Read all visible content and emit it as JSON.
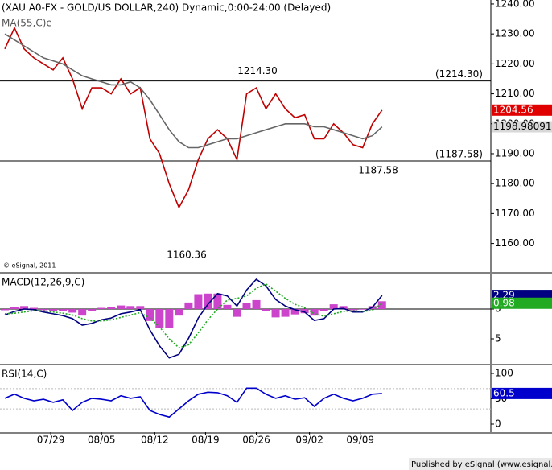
{
  "chart_data": [
    {
      "type": "line",
      "title": "(XAU A0-FX - GOLD/US DOLLAR,240) Dynamic,0:00-24:00 (Delayed)",
      "note": "© eSignal, 2011",
      "x": [
        1,
        3,
        5,
        7,
        9,
        11,
        13,
        15,
        17,
        19,
        21,
        23,
        25,
        27,
        29,
        31,
        33,
        35,
        37,
        39,
        41,
        43,
        45,
        47,
        49,
        51,
        53,
        55,
        57,
        59,
        61,
        63,
        65,
        67,
        69,
        71,
        73,
        75,
        77,
        79
      ],
      "xlim": [
        0,
        101.5
      ],
      "ylim": [
        1241.33,
        1150.48
      ],
      "yticks": [
        {
          "value": 1240,
          "label": "1240.00"
        },
        {
          "value": 1230,
          "label": "1230.00"
        },
        {
          "value": 1220,
          "label": "1220.00"
        },
        {
          "value": 1210,
          "label": "1210.00"
        },
        {
          "value": 1200,
          "label": "1200.00"
        },
        {
          "value": 1190,
          "label": "1190.00"
        },
        {
          "value": 1180,
          "label": "1180.00"
        },
        {
          "value": 1170,
          "label": "1170.00"
        },
        {
          "value": 1160,
          "label": "1160.00"
        }
      ],
      "series": [
        {
          "color": "#c00000",
          "box_color": "#e00000",
          "values": [
            1225,
            1232,
            1225,
            1222,
            1220,
            1218,
            1222,
            1215,
            1205,
            1212,
            1212,
            1210,
            1215,
            1210,
            1212,
            1195,
            1190,
            1180,
            1172,
            1178,
            1188,
            1195,
            1198,
            1195,
            1188,
            1210,
            1212,
            1205,
            1210,
            1205,
            1202,
            1203,
            1195,
            1195,
            1200,
            1197,
            1193,
            1192,
            1200,
            1204.56
          ]
        },
        {
          "name": "MA(55,C)e",
          "color": "#666666",
          "box_color": "#d8d8d8",
          "values": [
            1230,
            1228,
            1226,
            1224,
            1222,
            1221,
            1220,
            1218,
            1216,
            1215,
            1214,
            1213,
            1213,
            1214,
            1212,
            1208,
            1203,
            1198,
            1194,
            1192,
            1192,
            1193,
            1194,
            1195,
            1195,
            1196,
            1197,
            1198,
            1199,
            1200,
            1200,
            1200,
            1199,
            1199,
            1198,
            1197,
            1196,
            1195,
            1196,
            1198.98091
          ]
        }
      ],
      "levels": [
        {
          "value": 1214.3,
          "label": "(1214.30)"
        },
        {
          "value": 1187.58,
          "label": "(1187.58)"
        }
      ],
      "annotations": [
        {
          "value": 1214.3,
          "label": "1214.30"
        },
        {
          "value": 1187.58,
          "label": "1187.58"
        },
        {
          "value": 1160.36,
          "label": "1160.36"
        }
      ]
    },
    {
      "type": "line",
      "title": "MACD(12,26,9,C)",
      "x": [
        1,
        3,
        5,
        7,
        9,
        11,
        13,
        15,
        17,
        19,
        21,
        23,
        25,
        27,
        29,
        31,
        33,
        35,
        37,
        39,
        41,
        43,
        45,
        47,
        49,
        51,
        53,
        55,
        57,
        59,
        61,
        63,
        65,
        67,
        69,
        71,
        73,
        75,
        77,
        79
      ],
      "xlim": [
        0,
        101.5
      ],
      "ylim": [
        5.95,
        -9.19
      ],
      "yticks": [
        0,
        {
          "value": -5,
          "label": "5"
        }
      ],
      "series": [
        {
          "type": "bar",
          "color": "#cc44cc",
          "values": [
            -0.2,
            0.3,
            0.5,
            0.2,
            -0.2,
            -0.3,
            -0.4,
            -0.6,
            -1.1,
            -0.4,
            0.2,
            0.3,
            0.6,
            0.5,
            0.5,
            -2,
            -3.2,
            -3.2,
            -1.1,
            1.1,
            2.5,
            2.6,
            2.6,
            0.7,
            -1.3,
            1,
            1.5,
            -0.3,
            -1.4,
            -1.3,
            -0.9,
            -0.7,
            -1.1,
            -0.4,
            0.8,
            0.5,
            -0.2,
            -0.1,
            0.5,
            1.31
          ]
        },
        {
          "color": "#000080",
          "box_color": "#000080",
          "values": [
            -1,
            -0.4,
            0,
            -0.1,
            -0.5,
            -0.8,
            -1.1,
            -1.6,
            -2.7,
            -2.4,
            -1.8,
            -1.5,
            -0.8,
            -0.5,
            -0.1,
            -3.5,
            -6.2,
            -8.2,
            -7.6,
            -4.9,
            -1.5,
            0.8,
            2.6,
            2.2,
            0.5,
            3.2,
            5,
            3.9,
            1.6,
            0.5,
            -0.1,
            -0.5,
            -1.9,
            -1.6,
            0,
            0.1,
            -0.5,
            -0.5,
            0.3,
            2.29
          ]
        },
        {
          "color": "#22aa22",
          "dash": true,
          "box_color": "#22aa22",
          "values": [
            -0.8,
            -0.7,
            -0.5,
            -0.3,
            -0.3,
            -0.5,
            -0.7,
            -1,
            -1.6,
            -2,
            -2,
            -1.8,
            -1.4,
            -1,
            -0.6,
            -1.5,
            -3,
            -5,
            -6.5,
            -6,
            -4,
            -1.8,
            0,
            1.5,
            1.8,
            2.2,
            3.5,
            4.2,
            3,
            1.8,
            0.8,
            0.2,
            -0.8,
            -1.2,
            -0.8,
            -0.4,
            -0.3,
            -0.4,
            -0.2,
            0.98
          ]
        }
      ]
    },
    {
      "type": "line",
      "title": "RSI(14,C)",
      "x": [
        1,
        3,
        5,
        7,
        9,
        11,
        13,
        15,
        17,
        19,
        21,
        23,
        25,
        27,
        29,
        31,
        33,
        35,
        37,
        39,
        41,
        43,
        45,
        47,
        49,
        51,
        53,
        55,
        57,
        59,
        61,
        63,
        65,
        67,
        69,
        71,
        73,
        75,
        77,
        79
      ],
      "xlim": [
        0,
        101.5
      ],
      "ylim": [
        115.9,
        -15.9
      ],
      "yticks": [
        100,
        50,
        0
      ],
      "levels": [
        70,
        30
      ],
      "xticks": [
        {
          "value": 10.5,
          "label": "07/29"
        },
        {
          "value": 21,
          "label": "08/05"
        },
        {
          "value": 32,
          "label": "08/12"
        },
        {
          "value": 42.5,
          "label": "08/19"
        },
        {
          "value": 53,
          "label": "08/26"
        },
        {
          "value": 64,
          "label": "09/02"
        },
        {
          "value": 74.5,
          "label": "09/09"
        }
      ],
      "series": [
        {
          "color": "#0000cc",
          "box_color": "#0000cc",
          "values": [
            51,
            59,
            51,
            46,
            49,
            43,
            48,
            27,
            43,
            51,
            49,
            46,
            56,
            51,
            54,
            27,
            19,
            14,
            30,
            46,
            59,
            63,
            62,
            56,
            43,
            71,
            71,
            59,
            51,
            56,
            49,
            52,
            35,
            51,
            59,
            51,
            46,
            51,
            59,
            60.5
          ]
        }
      ]
    }
  ],
  "footer": "Published by eSignal (www.esignal.com)"
}
